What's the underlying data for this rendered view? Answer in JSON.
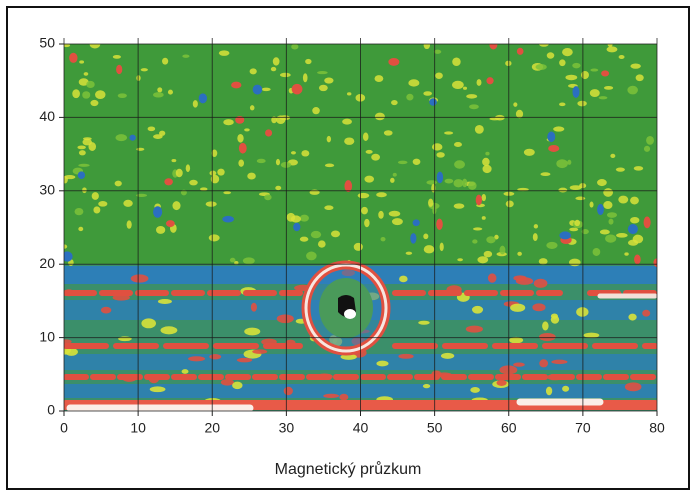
{
  "chart_data": {
    "type": "heatmap",
    "title": "Magnetický průzkum",
    "xlim": [
      0,
      80
    ],
    "xticks": [
      0,
      10,
      20,
      30,
      40,
      50,
      60,
      70,
      80
    ],
    "ylim": [
      0,
      50
    ],
    "yticks": [
      0,
      10,
      20,
      30,
      40,
      50
    ],
    "grid": true
  }
}
